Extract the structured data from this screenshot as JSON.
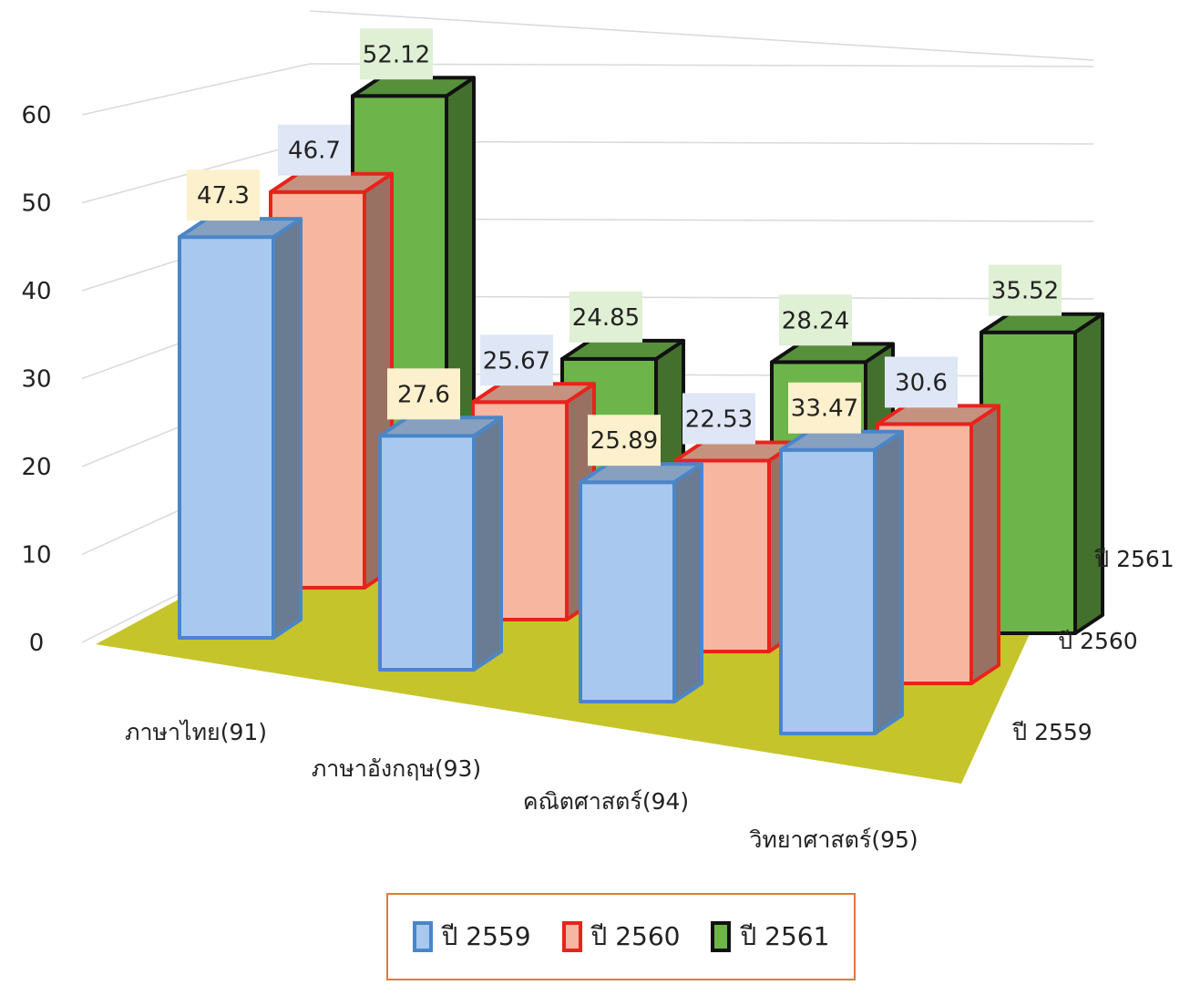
{
  "chart_data": {
    "type": "bar",
    "title": "",
    "xlabel": "",
    "ylabel": "",
    "ylim": [
      0,
      60
    ],
    "yticks": [
      0,
      10,
      20,
      30,
      40,
      50,
      60
    ],
    "grid": true,
    "legend_position": "bottom",
    "categories": [
      "ภาษาไทย(91)",
      "ภาษาอังกฤษ(93)",
      "คณิตศาสตร์(94)",
      "วิทยาศาสตร์(95)"
    ],
    "series": [
      {
        "name": "ปี 2559",
        "values": [
          47.3,
          27.6,
          25.89,
          33.47
        ],
        "color": "#a9c8ef",
        "border": "#4a86c8",
        "label_bg": "#fdf0cc"
      },
      {
        "name": "ปี 2560",
        "values": [
          46.7,
          25.67,
          22.53,
          30.6
        ],
        "color": "#f7b6a0",
        "border": "#e8231c",
        "label_bg": "#dfe7f6"
      },
      {
        "name": "ปี 2561",
        "values": [
          52.12,
          24.85,
          28.24,
          35.52
        ],
        "color": "#6db44a",
        "border": "#111111",
        "label_bg": "#dff0d4"
      }
    ],
    "floor_color": "#c5c42a"
  }
}
